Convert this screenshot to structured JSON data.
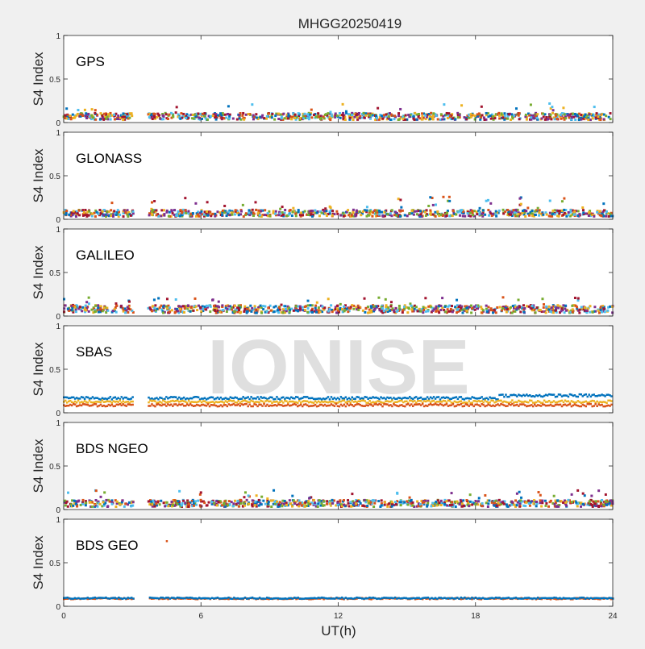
{
  "chart_data": {
    "type": "scatter",
    "title": "MHGG20250419",
    "xlabel": "UT(h)",
    "ylabel": "S4 Index",
    "xlim": [
      0,
      24
    ],
    "ylim": [
      0,
      1
    ],
    "xticks": [
      0,
      6,
      12,
      18,
      24
    ],
    "xtick_labels": [
      "0",
      "6",
      "12",
      "18",
      "24"
    ],
    "yticks": [
      0,
      0.5,
      1
    ],
    "ytick_labels": [
      "0",
      "0.5",
      "1"
    ],
    "data_gap_hours": [
      3.05,
      3.7
    ],
    "watermark": "IONISE",
    "series_colors": [
      "#0072bd",
      "#d95319",
      "#edb120",
      "#7e2f8e",
      "#77ac30",
      "#4dbeee",
      "#a2142f"
    ],
    "panels": [
      {
        "label": "GPS",
        "approx_s4_typical": 0.07,
        "approx_s4_max": 0.22
      },
      {
        "label": "GLONASS",
        "approx_s4_typical": 0.07,
        "approx_s4_max": 0.27
      },
      {
        "label": "GALILEO",
        "approx_s4_typical": 0.08,
        "approx_s4_max": 0.22
      },
      {
        "label": "SBAS",
        "approx_s4_typical": 0.13,
        "approx_s4_max": 0.22
      },
      {
        "label": "BDS NGEO",
        "approx_s4_typical": 0.07,
        "approx_s4_max": 0.22
      },
      {
        "label": "BDS GEO",
        "approx_s4_typical": 0.09,
        "approx_s4_max": 0.75
      }
    ]
  }
}
